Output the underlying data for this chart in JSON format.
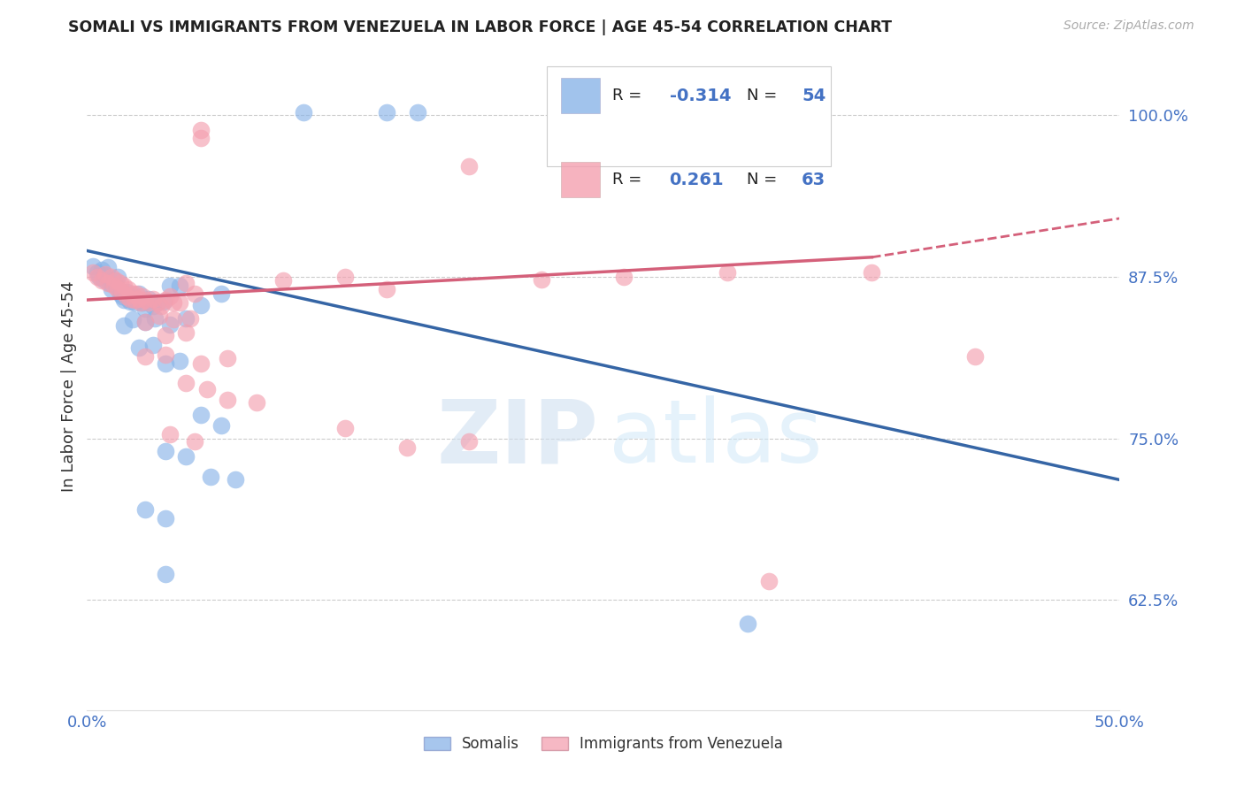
{
  "title": "SOMALI VS IMMIGRANTS FROM VENEZUELA IN LABOR FORCE | AGE 45-54 CORRELATION CHART",
  "source": "Source: ZipAtlas.com",
  "ylabel": "In Labor Force | Age 45-54",
  "xlim": [
    0.0,
    0.5
  ],
  "ylim": [
    0.54,
    1.04
  ],
  "xticks": [
    0.0,
    0.1,
    0.2,
    0.3,
    0.4,
    0.5
  ],
  "xticklabels": [
    "0.0%",
    "",
    "",
    "",
    "",
    "50.0%"
  ],
  "yticks": [
    0.625,
    0.75,
    0.875,
    1.0
  ],
  "yticklabels": [
    "62.5%",
    "75.0%",
    "87.5%",
    "100.0%"
  ],
  "somali_color": "#8ab4e8",
  "venezuela_color": "#f4a0b0",
  "somali_line_color": "#3565a5",
  "venezuela_line_color": "#d4607a",
  "background_color": "#ffffff",
  "grid_color": "#cccccc",
  "watermark_zip": "ZIP",
  "watermark_atlas": "atlas",
  "somali_R": "-0.314",
  "somali_N": "54",
  "venezuela_R": "0.261",
  "venezuela_N": "63",
  "legend_label_1": "Somalis",
  "legend_label_2": "Immigrants from Venezuela",
  "somali_scatter": [
    [
      0.003,
      0.883
    ],
    [
      0.005,
      0.878
    ],
    [
      0.006,
      0.875
    ],
    [
      0.007,
      0.88
    ],
    [
      0.008,
      0.873
    ],
    [
      0.009,
      0.876
    ],
    [
      0.01,
      0.882
    ],
    [
      0.011,
      0.87
    ],
    [
      0.012,
      0.865
    ],
    [
      0.013,
      0.872
    ],
    [
      0.014,
      0.868
    ],
    [
      0.015,
      0.875
    ],
    [
      0.016,
      0.862
    ],
    [
      0.017,
      0.86
    ],
    [
      0.018,
      0.857
    ],
    [
      0.019,
      0.863
    ],
    [
      0.02,
      0.858
    ],
    [
      0.021,
      0.856
    ],
    [
      0.022,
      0.86
    ],
    [
      0.023,
      0.855
    ],
    [
      0.024,
      0.858
    ],
    [
      0.025,
      0.862
    ],
    [
      0.027,
      0.855
    ],
    [
      0.028,
      0.85
    ],
    [
      0.03,
      0.858
    ],
    [
      0.032,
      0.852
    ],
    [
      0.034,
      0.855
    ],
    [
      0.037,
      0.856
    ],
    [
      0.04,
      0.868
    ],
    [
      0.045,
      0.868
    ],
    [
      0.055,
      0.853
    ],
    [
      0.065,
      0.862
    ],
    [
      0.018,
      0.837
    ],
    [
      0.022,
      0.842
    ],
    [
      0.028,
      0.84
    ],
    [
      0.033,
      0.843
    ],
    [
      0.04,
      0.838
    ],
    [
      0.048,
      0.843
    ],
    [
      0.025,
      0.82
    ],
    [
      0.032,
      0.822
    ],
    [
      0.038,
      0.808
    ],
    [
      0.045,
      0.81
    ],
    [
      0.055,
      0.768
    ],
    [
      0.065,
      0.76
    ],
    [
      0.038,
      0.74
    ],
    [
      0.048,
      0.736
    ],
    [
      0.06,
      0.72
    ],
    [
      0.072,
      0.718
    ],
    [
      0.028,
      0.695
    ],
    [
      0.038,
      0.688
    ],
    [
      0.32,
      0.607
    ],
    [
      0.038,
      0.645
    ],
    [
      0.105,
      1.002
    ],
    [
      0.145,
      1.002
    ],
    [
      0.16,
      1.002
    ],
    [
      0.29,
      1.002
    ]
  ],
  "venezuela_scatter": [
    [
      0.003,
      0.878
    ],
    [
      0.005,
      0.875
    ],
    [
      0.007,
      0.872
    ],
    [
      0.009,
      0.877
    ],
    [
      0.01,
      0.87
    ],
    [
      0.012,
      0.875
    ],
    [
      0.013,
      0.868
    ],
    [
      0.014,
      0.872
    ],
    [
      0.015,
      0.865
    ],
    [
      0.016,
      0.87
    ],
    [
      0.017,
      0.863
    ],
    [
      0.018,
      0.868
    ],
    [
      0.019,
      0.86
    ],
    [
      0.02,
      0.865
    ],
    [
      0.021,
      0.858
    ],
    [
      0.022,
      0.862
    ],
    [
      0.023,
      0.857
    ],
    [
      0.024,
      0.862
    ],
    [
      0.025,
      0.858
    ],
    [
      0.026,
      0.855
    ],
    [
      0.027,
      0.86
    ],
    [
      0.028,
      0.857
    ],
    [
      0.03,
      0.855
    ],
    [
      0.032,
      0.858
    ],
    [
      0.034,
      0.855
    ],
    [
      0.036,
      0.852
    ],
    [
      0.038,
      0.857
    ],
    [
      0.04,
      0.86
    ],
    [
      0.042,
      0.855
    ],
    [
      0.045,
      0.855
    ],
    [
      0.048,
      0.87
    ],
    [
      0.052,
      0.862
    ],
    [
      0.028,
      0.84
    ],
    [
      0.035,
      0.845
    ],
    [
      0.042,
      0.842
    ],
    [
      0.05,
      0.843
    ],
    [
      0.038,
      0.83
    ],
    [
      0.048,
      0.832
    ],
    [
      0.028,
      0.813
    ],
    [
      0.038,
      0.815
    ],
    [
      0.055,
      0.808
    ],
    [
      0.068,
      0.812
    ],
    [
      0.048,
      0.793
    ],
    [
      0.058,
      0.788
    ],
    [
      0.068,
      0.78
    ],
    [
      0.082,
      0.778
    ],
    [
      0.04,
      0.753
    ],
    [
      0.052,
      0.748
    ],
    [
      0.125,
      0.758
    ],
    [
      0.185,
      0.748
    ],
    [
      0.155,
      0.743
    ],
    [
      0.22,
      0.873
    ],
    [
      0.26,
      0.875
    ],
    [
      0.31,
      0.878
    ],
    [
      0.185,
      0.96
    ],
    [
      0.055,
      0.988
    ],
    [
      0.055,
      0.982
    ],
    [
      0.38,
      0.878
    ],
    [
      0.43,
      0.813
    ],
    [
      0.33,
      0.64
    ],
    [
      0.095,
      0.872
    ],
    [
      0.125,
      0.875
    ],
    [
      0.145,
      0.865
    ]
  ],
  "somali_line": [
    [
      0.0,
      0.895
    ],
    [
      0.5,
      0.718
    ]
  ],
  "venezuela_line_solid": [
    [
      0.0,
      0.857
    ],
    [
      0.38,
      0.89
    ]
  ],
  "venezuela_line_dash": [
    [
      0.38,
      0.89
    ],
    [
      0.5,
      0.92
    ]
  ]
}
